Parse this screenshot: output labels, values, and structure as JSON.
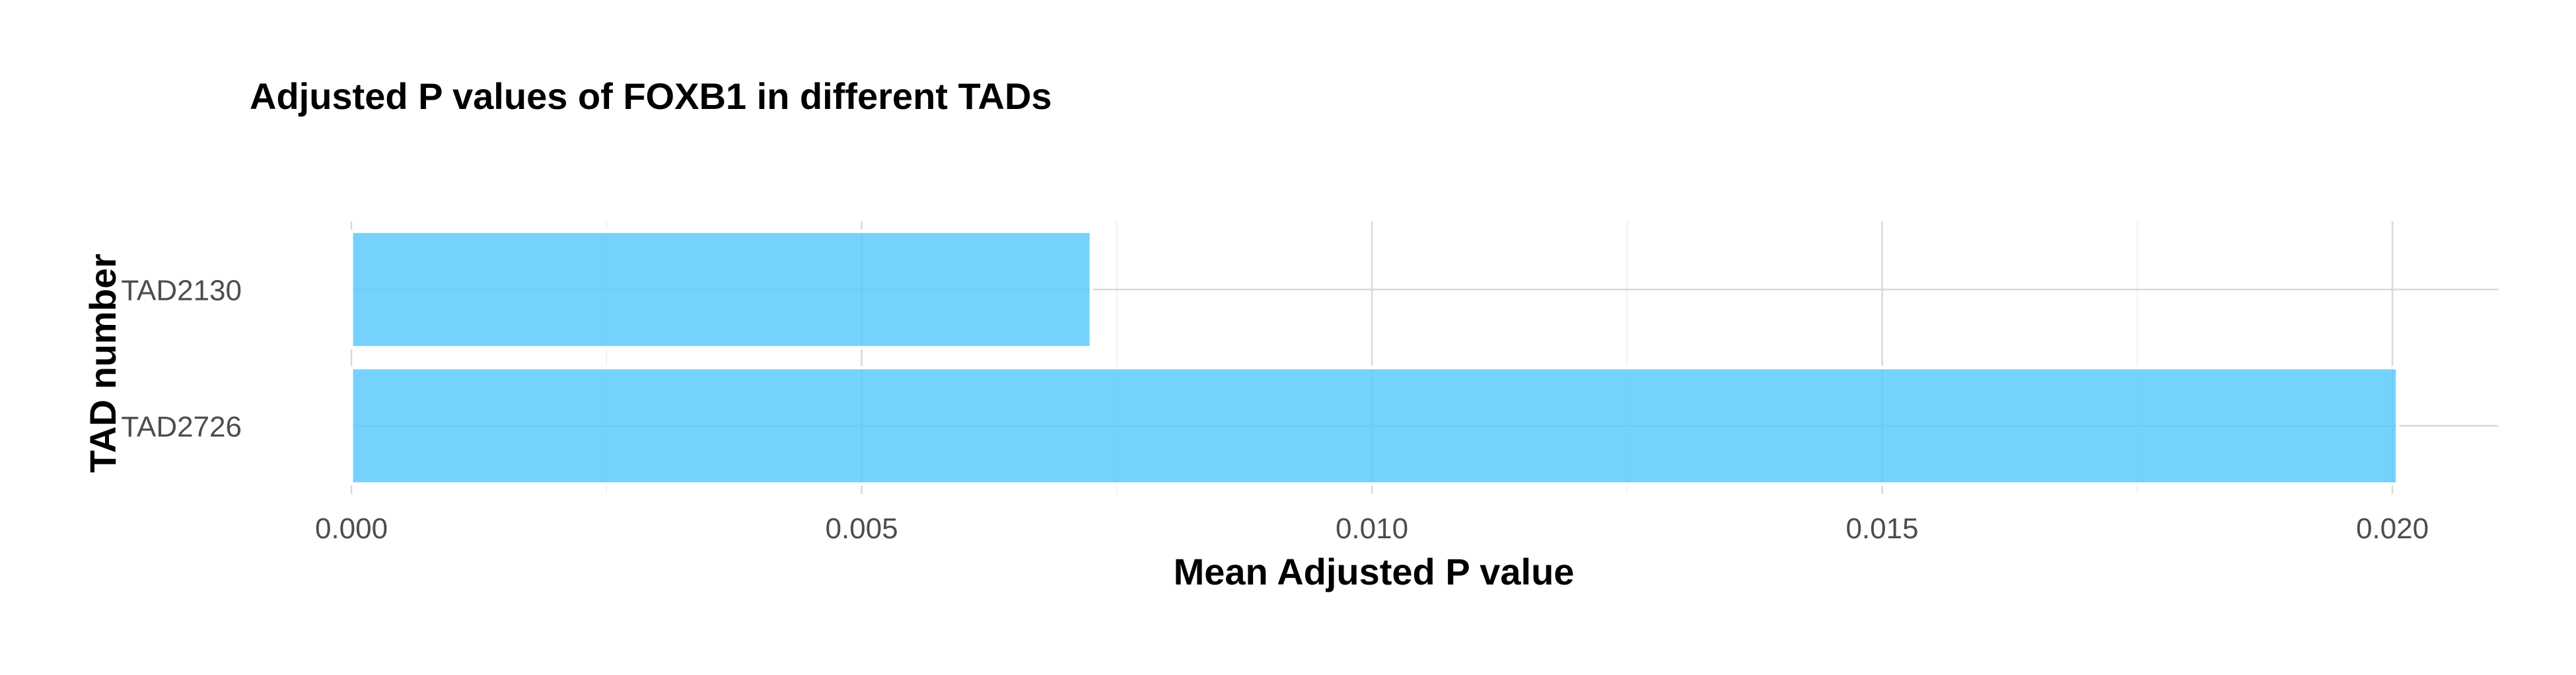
{
  "chart_data": {
    "type": "bar",
    "orientation": "horizontal",
    "title": "Adjusted P values of FOXB1 in different TADs",
    "xlabel": "Mean Adjusted P value",
    "ylabel": "TAD number",
    "categories": [
      "TAD2130",
      "TAD2726"
    ],
    "values": [
      0.00725,
      0.02005
    ],
    "xlim": [
      0,
      0.021
    ],
    "x_ticks": [
      0,
      0.005,
      0.01,
      0.015,
      0.02
    ],
    "x_tick_labels": [
      "0.000",
      "0.005",
      "0.010",
      "0.015",
      "0.020"
    ],
    "grid": true,
    "legend": "none",
    "colors": {
      "bar_fill": "#56c8fb",
      "bar_outline": "#ffffff"
    }
  }
}
